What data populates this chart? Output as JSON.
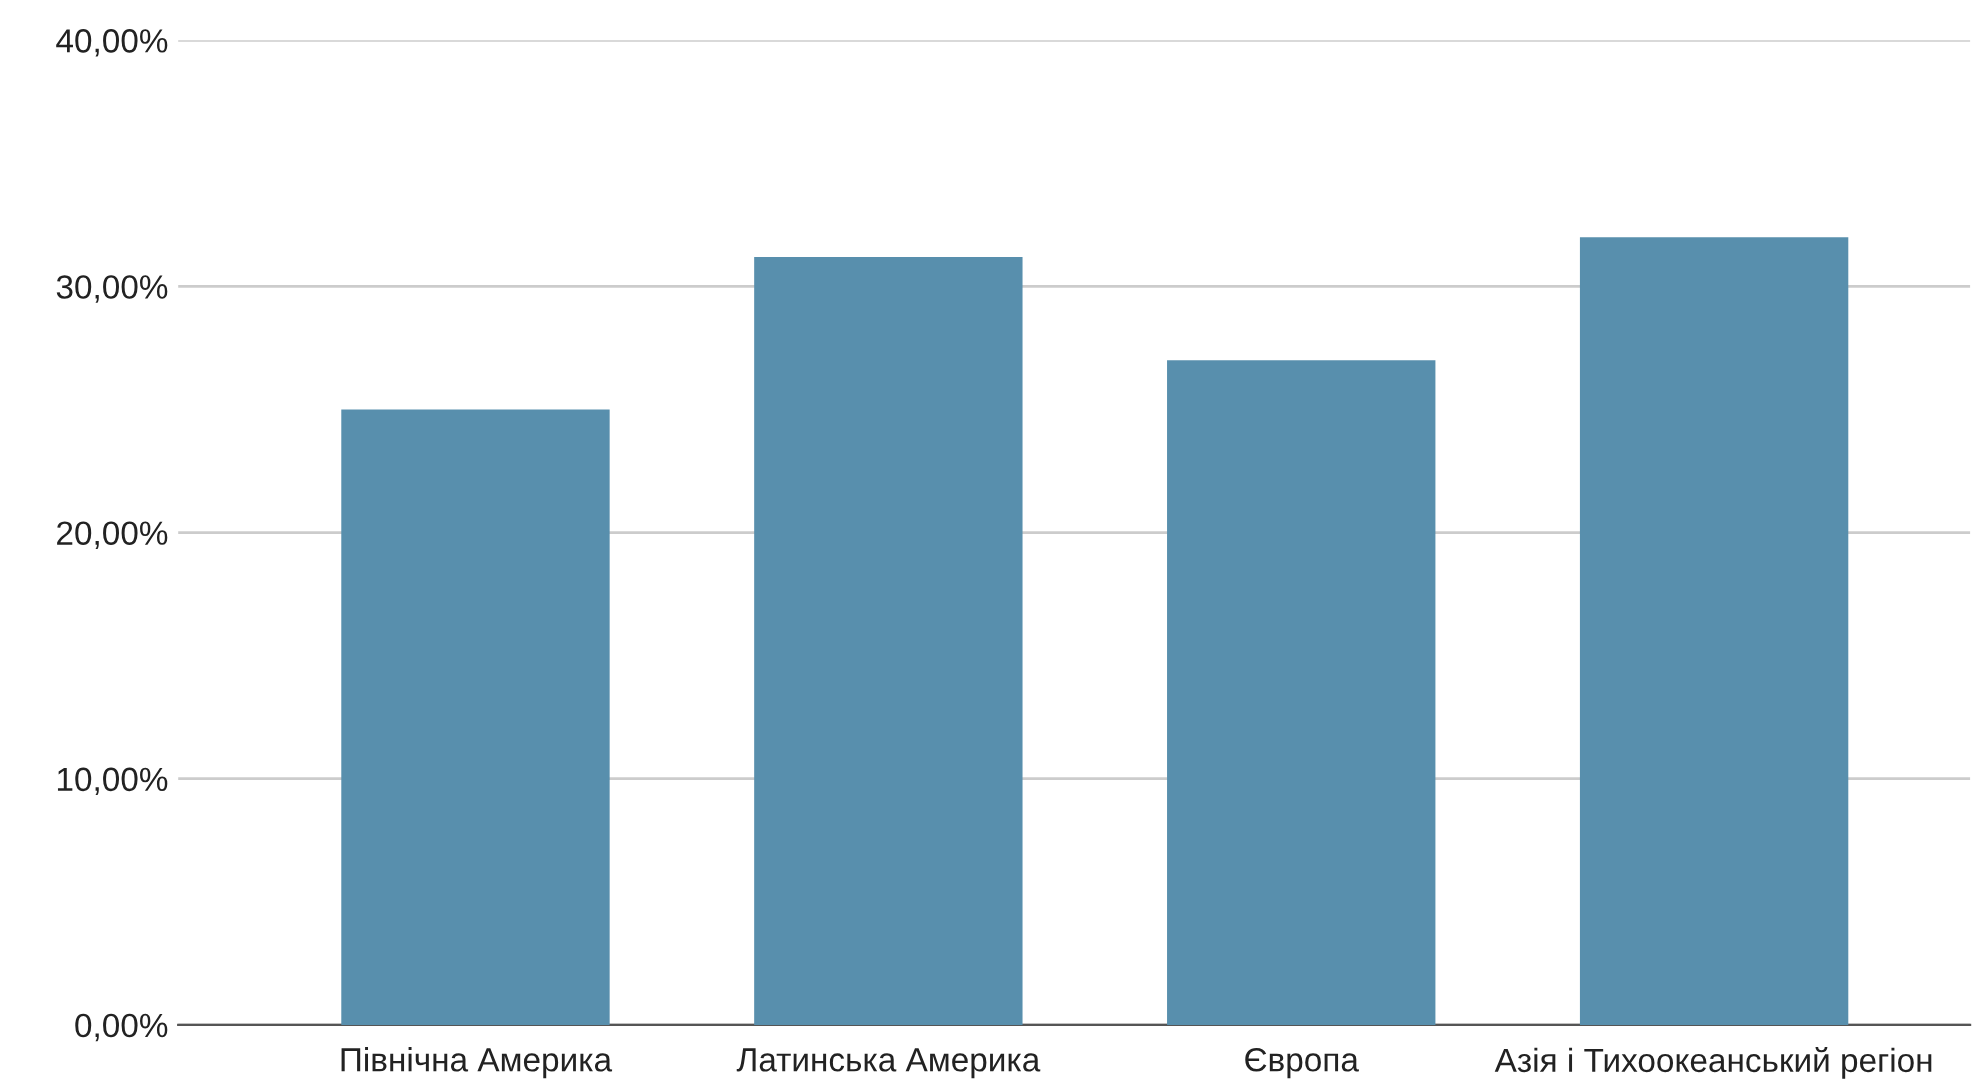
{
  "chart_data": {
    "type": "bar",
    "categories": [
      "Північна Америка",
      "Латинська Америка",
      "Європа",
      "Азія і Тихоокеанський регіон"
    ],
    "values": [
      25.0,
      31.2,
      27.0,
      32.0
    ],
    "color": "#588fad",
    "ylim": [
      0,
      40
    ],
    "yticks": [
      {
        "value": 0,
        "label": "0,00%"
      },
      {
        "value": 10,
        "label": "10,00%"
      },
      {
        "value": 20,
        "label": "20,00%"
      },
      {
        "value": 30,
        "label": "30,00%"
      },
      {
        "value": 40,
        "label": "40,00%"
      }
    ],
    "grid": "y",
    "legend": false
  }
}
